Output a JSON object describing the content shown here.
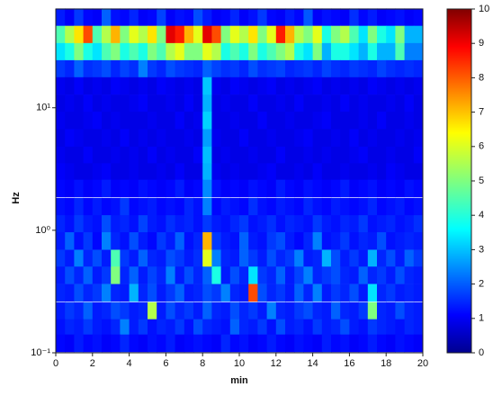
{
  "chart_data": {
    "type": "heatmap",
    "x_label": "min",
    "y_label": "Hz",
    "xlim": [
      0,
      20
    ],
    "xticks": [
      0,
      2,
      4,
      6,
      8,
      10,
      12,
      14,
      16,
      18,
      20
    ],
    "ylim": [
      0.1,
      64
    ],
    "log_y": true,
    "yticks": [
      {
        "value": 0.1,
        "label": "10⁻¹"
      },
      {
        "value": 1,
        "label": "10⁰"
      },
      {
        "value": 10,
        "label": "10¹"
      }
    ],
    "clim": [
      0,
      10
    ],
    "cticks": [
      0,
      1,
      2,
      3,
      4,
      5,
      6,
      7,
      8,
      9,
      10
    ],
    "colormap": "jet",
    "x": [
      0.25,
      0.75,
      1.25,
      1.75,
      2.25,
      2.75,
      3.25,
      3.75,
      4.25,
      4.75,
      5.25,
      5.75,
      6.25,
      6.75,
      7.25,
      7.75,
      8.25,
      8.75,
      9.25,
      9.75,
      10.25,
      10.75,
      11.25,
      11.75,
      12.25,
      12.75,
      13.25,
      13.75,
      14.25,
      14.75,
      15.25,
      15.75,
      16.25,
      16.75,
      17.25,
      17.75,
      18.25,
      18.75,
      19.25,
      19.75
    ],
    "y": [
      55,
      39.7,
      28.7,
      20.8,
      15.1,
      10.9,
      7.9,
      5.7,
      4.1,
      3.0,
      2.2,
      1.56,
      1.13,
      0.82,
      0.59,
      0.43,
      0.31,
      0.22,
      0.16,
      0.12
    ],
    "z": [
      [
        1.5,
        1.2,
        1.8,
        1.3,
        1.2,
        2.2,
        1.4,
        1.3,
        1.6,
        1.2,
        1.3,
        1.9,
        1.2,
        1.4,
        1.3,
        2.0,
        1.5,
        1.2,
        1.3,
        1.6,
        1.2,
        1.4,
        1.8,
        1.3,
        1.2,
        1.5,
        1.3,
        2.1,
        1.2,
        1.4,
        1.3,
        1.2,
        1.7,
        1.3,
        1.5,
        1.2,
        1.3,
        1.4,
        1.2,
        1.3
      ],
      [
        4.5,
        5.5,
        6.5,
        8,
        4.5,
        5.5,
        7,
        5,
        6,
        5.5,
        6.5,
        5,
        9,
        8.5,
        7,
        6,
        9,
        8,
        5,
        6,
        5.5,
        6.5,
        5,
        6,
        8.5,
        7,
        5.5,
        5,
        6,
        4,
        5,
        5.5,
        4.5,
        3.5,
        5,
        4,
        3.5,
        5,
        3,
        3
      ],
      [
        3.5,
        4,
        5,
        4,
        3.5,
        4.5,
        5,
        4,
        4.5,
        4,
        5,
        4.5,
        5.5,
        6,
        5,
        5,
        6,
        5.5,
        4,
        4.5,
        4,
        5,
        4,
        4.5,
        5,
        5.5,
        4,
        3.5,
        5,
        3,
        4,
        4,
        3.5,
        3,
        4,
        3,
        3,
        4.5,
        2.5,
        2.5
      ],
      [
        1.8,
        1.6,
        2.2,
        1.7,
        1.8,
        2,
        1.6,
        1.9,
        1.7,
        2.5,
        1.8,
        1.6,
        2,
        1.8,
        1.7,
        1.6,
        2.2,
        1.9,
        1.7,
        1.8,
        1.6,
        2,
        1.7,
        1.8,
        1.9,
        1.6,
        1.7,
        1.8,
        1.6,
        1.9,
        1.7,
        1.6,
        1.8,
        1.7,
        1.6,
        1.9,
        1.7,
        1.6,
        1.7,
        1.6
      ],
      [
        1.1,
        1,
        1.2,
        1,
        1.1,
        1,
        1.2,
        1.1,
        1,
        1.1,
        1,
        1.2,
        1.1,
        1,
        1.1,
        1,
        3.2,
        1.1,
        1,
        1.2,
        1.1,
        1,
        1.1,
        1.2,
        1,
        1.1,
        1,
        1.1,
        1.2,
        1,
        1.1,
        1,
        1.1,
        1,
        1.2,
        1.1,
        1,
        1.1,
        1,
        1.1
      ],
      [
        1,
        1.1,
        1,
        1.2,
        1,
        1.1,
        1,
        1,
        1.1,
        1.2,
        1,
        1,
        1.1,
        1,
        1.2,
        1,
        3,
        1,
        1.1,
        1,
        1,
        1.2,
        1,
        1,
        1.1,
        1,
        1.2,
        1,
        1,
        1.1,
        1,
        1.2,
        1,
        1.1,
        1,
        1,
        1.1,
        1,
        1.2,
        1
      ],
      [
        1.1,
        1,
        1,
        1.1,
        1.2,
        1,
        1.1,
        1,
        1,
        1,
        1.1,
        1,
        1,
        1.2,
        1,
        1.1,
        3.3,
        1,
        1,
        1.1,
        1,
        1,
        1.2,
        1,
        1,
        1.1,
        1,
        1,
        1.1,
        1.2,
        1,
        1,
        1,
        1.1,
        1,
        1.2,
        1,
        1,
        1.1,
        1
      ],
      [
        1,
        1.2,
        1.1,
        1,
        1,
        1.1,
        1,
        1.2,
        1,
        1.1,
        1,
        1.1,
        1,
        1,
        1.1,
        1,
        2.8,
        1.1,
        1,
        1,
        1.2,
        1,
        1,
        1.1,
        1,
        1,
        1.1,
        1.2,
        1,
        1,
        1.1,
        1,
        1.2,
        1,
        1.1,
        1,
        1,
        1.1,
        1,
        1.1
      ],
      [
        1.1,
        1,
        1,
        1.2,
        1,
        1,
        1.1,
        1,
        1.1,
        1,
        1.2,
        1,
        1.1,
        1,
        1,
        1.2,
        3.1,
        1,
        1.1,
        1,
        1,
        1.1,
        1,
        1,
        1.2,
        1,
        1,
        1.1,
        1,
        1.1,
        1,
        1,
        1.1,
        1.2,
        1,
        1,
        1.1,
        1,
        1,
        1.2
      ],
      [
        1.2,
        1.1,
        1,
        1,
        1.1,
        1.2,
        1,
        1,
        1.1,
        1,
        1,
        1.1,
        1,
        1.2,
        1,
        1,
        3,
        1.1,
        1,
        1.1,
        1,
        1,
        1.1,
        1.2,
        1,
        1,
        1.1,
        1,
        1.2,
        1,
        1,
        1.1,
        1,
        1,
        1.1,
        1,
        1.2,
        1.1,
        1,
        1
      ],
      [
        1.3,
        1.2,
        1.4,
        1.2,
        1.3,
        1.5,
        1.2,
        1.3,
        1.2,
        1.4,
        1.3,
        1.2,
        1.3,
        1.5,
        1.2,
        1.3,
        2.6,
        1.4,
        1.2,
        1.3,
        1.2,
        1.4,
        1.3,
        1.2,
        1.5,
        1.3,
        1.2,
        1.4,
        1.3,
        1.2,
        1.3,
        1.5,
        1.2,
        1.3,
        1.4,
        1.2,
        1.3,
        1.2,
        1.4,
        1.3
      ],
      [
        1.4,
        1.3,
        1.6,
        1.3,
        1.5,
        1.3,
        1.4,
        1.8,
        1.3,
        1.4,
        1.5,
        1.3,
        1.4,
        1.3,
        1.6,
        1.4,
        2.5,
        1.3,
        1.5,
        1.4,
        1.3,
        1.7,
        1.4,
        1.3,
        1.5,
        1.4,
        1.3,
        1.6,
        1.4,
        1.3,
        1.5,
        1.4,
        1.3,
        1.4,
        1.6,
        1.3,
        1.4,
        1.5,
        1.3,
        1.4
      ],
      [
        1.6,
        1.4,
        1.8,
        1.5,
        1.4,
        2,
        1.5,
        1.6,
        1.4,
        1.9,
        1.5,
        1.4,
        1.7,
        1.5,
        1.6,
        1.4,
        1.8,
        1.5,
        1.4,
        1.6,
        1.8,
        1.4,
        1.5,
        1.7,
        1.4,
        1.6,
        1.5,
        1.4,
        1.8,
        1.5,
        1.4,
        1.6,
        1.5,
        1.8,
        1.4,
        1.5,
        1.6,
        1.4,
        1.5,
        1.7
      ],
      [
        1.5,
        2.2,
        1.4,
        1.8,
        1.3,
        2.5,
        1.6,
        1.4,
        2,
        1.5,
        1.3,
        1.8,
        1.5,
        2.2,
        1.4,
        1.6,
        7,
        1.8,
        1.5,
        1.4,
        2.2,
        1.5,
        1.4,
        1.8,
        2,
        1.5,
        1.3,
        1.6,
        2.5,
        1.4,
        1.5,
        1.8,
        1.4,
        1.6,
        1.5,
        2,
        1.4,
        1.5,
        1.6,
        1.5
      ],
      [
        1.8,
        1.5,
        2.5,
        1.6,
        2,
        1.5,
        4.5,
        1.8,
        1.5,
        2.2,
        1.6,
        1.5,
        2,
        1.8,
        1.5,
        1.7,
        6,
        2.5,
        1.6,
        1.5,
        2.2,
        1.8,
        1.5,
        2,
        1.6,
        1.8,
        2.5,
        1.5,
        1.6,
        3,
        2,
        1.5,
        1.8,
        1.5,
        3,
        1.6,
        2,
        1.5,
        2.2,
        1.8
      ],
      [
        1.5,
        2,
        1.6,
        2.2,
        1.5,
        1.8,
        5,
        1.6,
        2.2,
        1.5,
        1.9,
        1.6,
        2.5,
        1.5,
        2,
        1.6,
        2.2,
        4,
        1.5,
        2,
        1.6,
        3.5,
        1.8,
        1.6,
        2.2,
        1.5,
        1.9,
        2.5,
        1.6,
        1.8,
        2,
        1.6,
        1.5,
        2.2,
        1.6,
        1.8,
        1.5,
        2,
        1.6,
        1.5
      ],
      [
        1.6,
        1.5,
        2,
        1.6,
        1.8,
        2.5,
        1.6,
        1.5,
        3,
        1.6,
        2,
        1.5,
        1.8,
        2.2,
        1.5,
        1.6,
        2,
        1.8,
        2.5,
        1.6,
        1.5,
        8,
        2,
        1.6,
        1.8,
        1.5,
        2.2,
        1.6,
        2.5,
        1.5,
        1.8,
        1.6,
        2,
        1.5,
        3.5,
        1.6,
        1.8,
        1.5,
        1.6,
        1.5
      ],
      [
        1.5,
        1.8,
        1.6,
        2.2,
        1.5,
        1.6,
        2,
        1.8,
        1.5,
        1.6,
        5.5,
        1.5,
        2,
        1.6,
        1.8,
        1.5,
        2.2,
        1.6,
        1.5,
        2,
        1.6,
        1.8,
        1.5,
        2.5,
        1.6,
        1.5,
        1.8,
        2,
        1.6,
        1.5,
        2.2,
        1.6,
        1.5,
        1.8,
        5,
        1.6,
        1.5,
        2,
        1.6,
        1.5
      ],
      [
        1.4,
        1.6,
        1.5,
        1.8,
        1.5,
        1.4,
        1.6,
        2.5,
        1.5,
        1.8,
        1.4,
        1.6,
        1.5,
        1.8,
        1.4,
        2,
        1.6,
        1.5,
        1.4,
        2.2,
        1.6,
        1.5,
        1.8,
        1.4,
        2,
        1.5,
        1.6,
        1.4,
        1.8,
        1.5,
        1.6,
        2,
        1.5,
        1.4,
        1.8,
        1.6,
        1.5,
        1.4,
        1.6,
        1.5
      ],
      [
        1.3,
        1.2,
        1.5,
        1.3,
        1.4,
        1.2,
        1.3,
        1.6,
        1.3,
        1.2,
        1.4,
        1.3,
        1.5,
        1.2,
        1.3,
        1.4,
        1.3,
        1.2,
        1.6,
        1.3,
        1.4,
        1.2,
        1.3,
        1.5,
        1.3,
        1.2,
        1.4,
        1.3,
        1.2,
        1.5,
        1.3,
        1.4,
        1.2,
        1.3,
        1.5,
        1.3,
        1.2,
        1.4,
        1.3,
        1.2
      ]
    ]
  }
}
